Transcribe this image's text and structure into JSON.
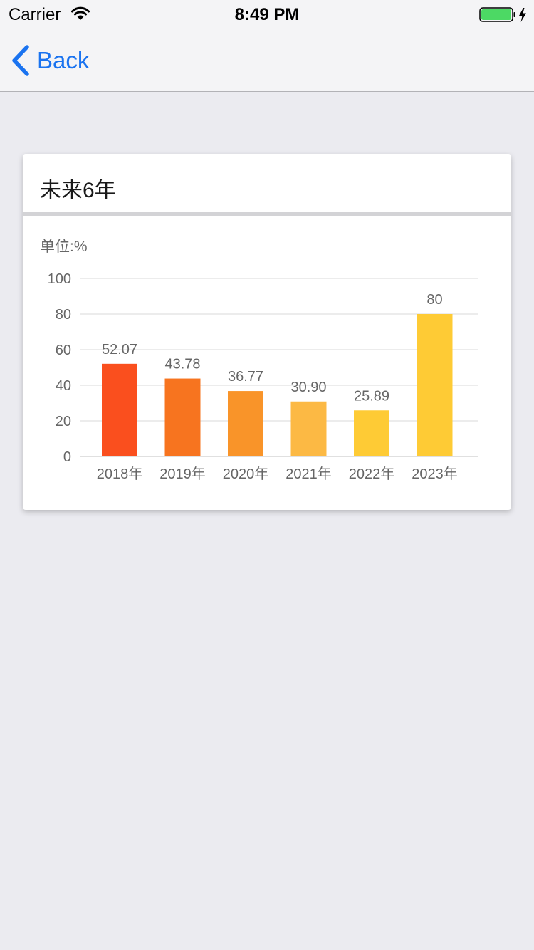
{
  "status_bar": {
    "carrier": "Carrier",
    "time": "8:49 PM",
    "battery_color": "#4cd964"
  },
  "nav_bar": {
    "back_label": "Back",
    "tint_color": "#1a73f0"
  },
  "card": {
    "title": "未来6年",
    "unit_label": "单位:%"
  },
  "chart_data": {
    "type": "bar",
    "categories": [
      "2018年",
      "2019年",
      "2020年",
      "2021年",
      "2022年",
      "2023年"
    ],
    "values": [
      52.07,
      43.78,
      36.77,
      30.9,
      25.89,
      80
    ],
    "value_labels": [
      "52.07",
      "43.78",
      "36.77",
      "30.90",
      "25.89",
      "80"
    ],
    "colors": [
      "#fa4f1e",
      "#f7741f",
      "#f99429",
      "#fcb944",
      "#fecb35",
      "#fecb35"
    ],
    "ylim": [
      0,
      100
    ],
    "yticks": [
      0,
      20,
      40,
      60,
      80,
      100
    ],
    "grid": true,
    "legend": false
  }
}
